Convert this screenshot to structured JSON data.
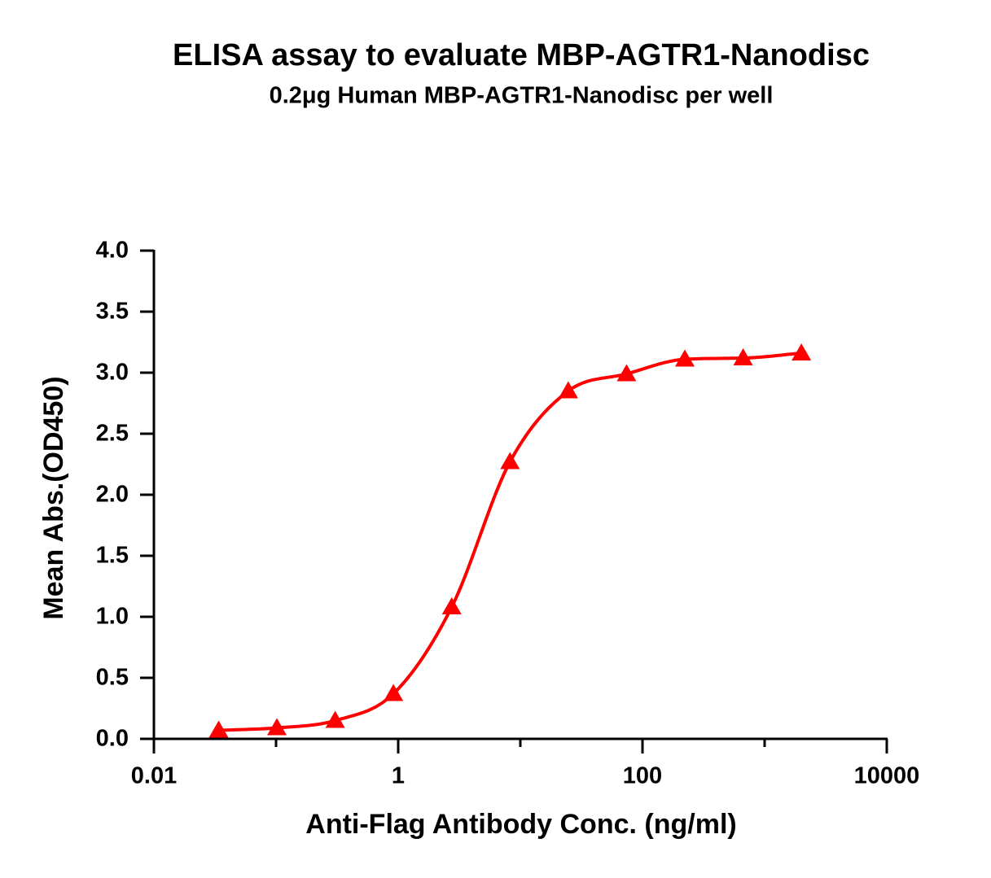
{
  "chart_data": {
    "type": "scatter",
    "title": "ELISA assay to evaluate MBP-AGTR1-Nanodisc",
    "subtitle": "0.2μg Human MBP-AGTR1-Nanodisc per well",
    "x_label": "Anti-Flag Antibody Conc. (ng/ml)",
    "y_label": "Mean Abs.(OD450)",
    "x_scale": "log",
    "fit_curve": true,
    "xlim": [
      0.01,
      10000
    ],
    "xticks": [
      0.01,
      1,
      100,
      10000
    ],
    "ylim": [
      0,
      4
    ],
    "yticks": [
      {
        "value": 0,
        "label": "0.0"
      },
      0.5,
      {
        "value": 1,
        "label": "1.0"
      },
      1.5,
      {
        "value": 2,
        "label": "2.0"
      },
      2.5,
      {
        "value": 3,
        "label": "3.0"
      },
      3.5,
      {
        "value": 4,
        "label": "4.0"
      }
    ],
    "series": [
      {
        "color": "#ff0000",
        "x": [
          0.0339,
          0.1016,
          0.3048,
          0.9145,
          2.743,
          8.23,
          24.69,
          74.07,
          222.2,
          666.7,
          2000
        ],
        "values": [
          0.07,
          0.09,
          0.15,
          0.37,
          1.08,
          2.27,
          2.85,
          2.99,
          3.11,
          3.12,
          3.16
        ]
      }
    ]
  }
}
